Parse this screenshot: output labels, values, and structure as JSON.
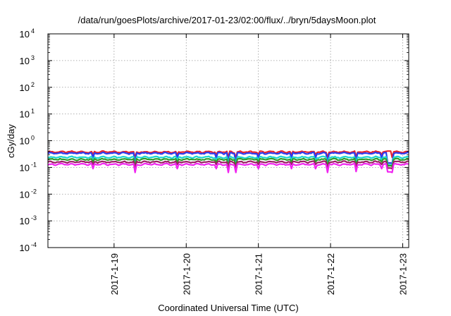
{
  "chart_data": {
    "type": "line",
    "title": "/data/run/goesPlots/archive/2017-01-23/02:00/flux/../bryn/5daysMoon.plot",
    "xlabel": "Coordinated Universal Time (UTC)",
    "ylabel": "cGy/day",
    "yscale": "log",
    "ylim": [
      0.0001,
      10000
    ],
    "xlim": [
      "2017-01-18 02:00",
      "2017-01-23 02:00"
    ],
    "grid": true,
    "y_ticks": [
      {
        "base": "10",
        "exp": "-4"
      },
      {
        "base": "10",
        "exp": "-3"
      },
      {
        "base": "10",
        "exp": "-2"
      },
      {
        "base": "10",
        "exp": "-1"
      },
      {
        "base": "10",
        "exp": "0"
      },
      {
        "base": "10",
        "exp": "1"
      },
      {
        "base": "10",
        "exp": "2"
      },
      {
        "base": "10",
        "exp": "3"
      },
      {
        "base": "10",
        "exp": "4"
      }
    ],
    "x_ticks": [
      {
        "label": "2017-1-19",
        "date": "2017-01-19 00:00"
      },
      {
        "label": "2017-1-20",
        "date": "2017-01-20 00:00"
      },
      {
        "label": "2017-1-21",
        "date": "2017-01-21 00:00"
      },
      {
        "label": "2017-1-22",
        "date": "2017-01-22 00:00"
      },
      {
        "label": "2017-1-23",
        "date": "2017-01-23 00:00"
      }
    ],
    "series": [
      {
        "color": "#e8222c",
        "base": 0.38,
        "dips": [
          0.31,
          0.26,
          0.24
        ]
      },
      {
        "color": "#2b3cf0",
        "base": 0.34,
        "dips": [
          0.23,
          0.17,
          0.14
        ]
      },
      {
        "color": "#1ad6d0",
        "base": 0.24,
        "dips": [
          0.19,
          0.15,
          0.12
        ]
      },
      {
        "color": "#2f9c2a",
        "base": 0.2,
        "dips": [
          0.16,
          0.13,
          0.11
        ]
      },
      {
        "color": "#9a1f62",
        "base": 0.16,
        "dips": [
          0.13,
          0.11,
          0.09
        ]
      },
      {
        "color": "#f025f0",
        "base": 0.13,
        "dips": [
          0.09,
          0.07,
          0.065
        ]
      }
    ]
  }
}
